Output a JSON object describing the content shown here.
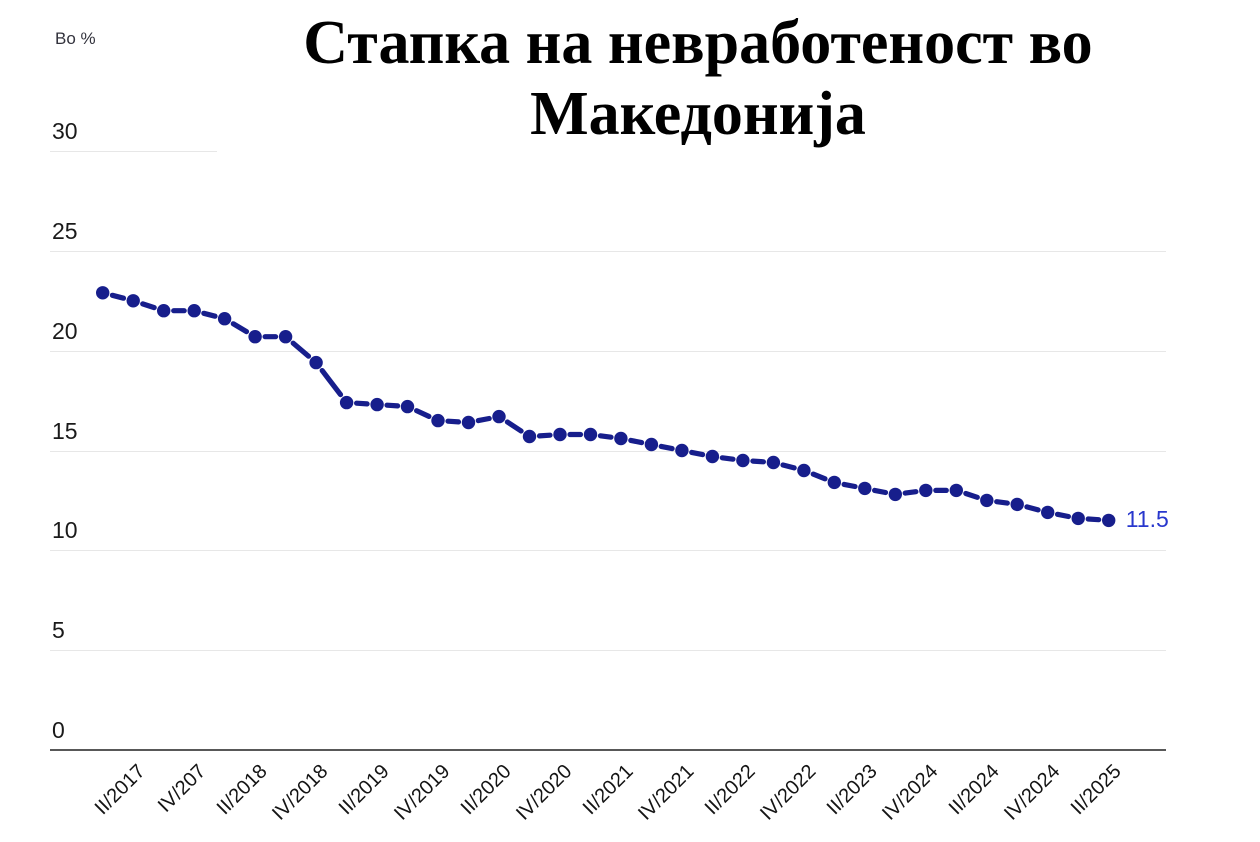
{
  "chart_data": {
    "type": "line",
    "title": "Стапка на невработеност во Македонија",
    "title_lines": [
      "Стапка на невработеност во",
      "Македонија"
    ],
    "unit_label": "Во %",
    "values": [
      22.9,
      22.5,
      22.0,
      22.0,
      21.6,
      20.7,
      20.7,
      19.4,
      17.4,
      17.3,
      17.2,
      16.5,
      16.4,
      16.7,
      15.7,
      15.8,
      15.8,
      15.6,
      15.3,
      15.0,
      14.7,
      14.5,
      14.4,
      14.0,
      13.4,
      13.1,
      12.8,
      13.0,
      13.0,
      12.5,
      12.3,
      11.9,
      11.6,
      11.5
    ],
    "x_tick_labels": [
      "II/2017",
      "IV/207",
      "II/2018",
      "IV/2018",
      "II/2019",
      "IV/2019",
      "II/2020",
      "IV/2020",
      "II/2021",
      "IV/2021",
      "II/2022",
      "IV/2022",
      "II/2023",
      "IV/2024",
      "II/2024",
      "IV/2024",
      "II/2025"
    ],
    "x_tick_indices": [
      1,
      3,
      5,
      7,
      9,
      11,
      13,
      15,
      17,
      19,
      21,
      23,
      25,
      27,
      29,
      31,
      33
    ],
    "y_ticks": [
      0,
      5,
      10,
      15,
      20,
      25,
      30
    ],
    "ylim": [
      0,
      30
    ],
    "end_label": "11.5",
    "grid": true,
    "legend": "none",
    "line_style": "dashed-with-dots",
    "colors": {
      "line": "#171e8c",
      "end_label": "#2837cd",
      "grid": "#e7e7e7",
      "axis": "#585858",
      "tick_text": "#1a1a1a",
      "title": "#000000"
    }
  }
}
